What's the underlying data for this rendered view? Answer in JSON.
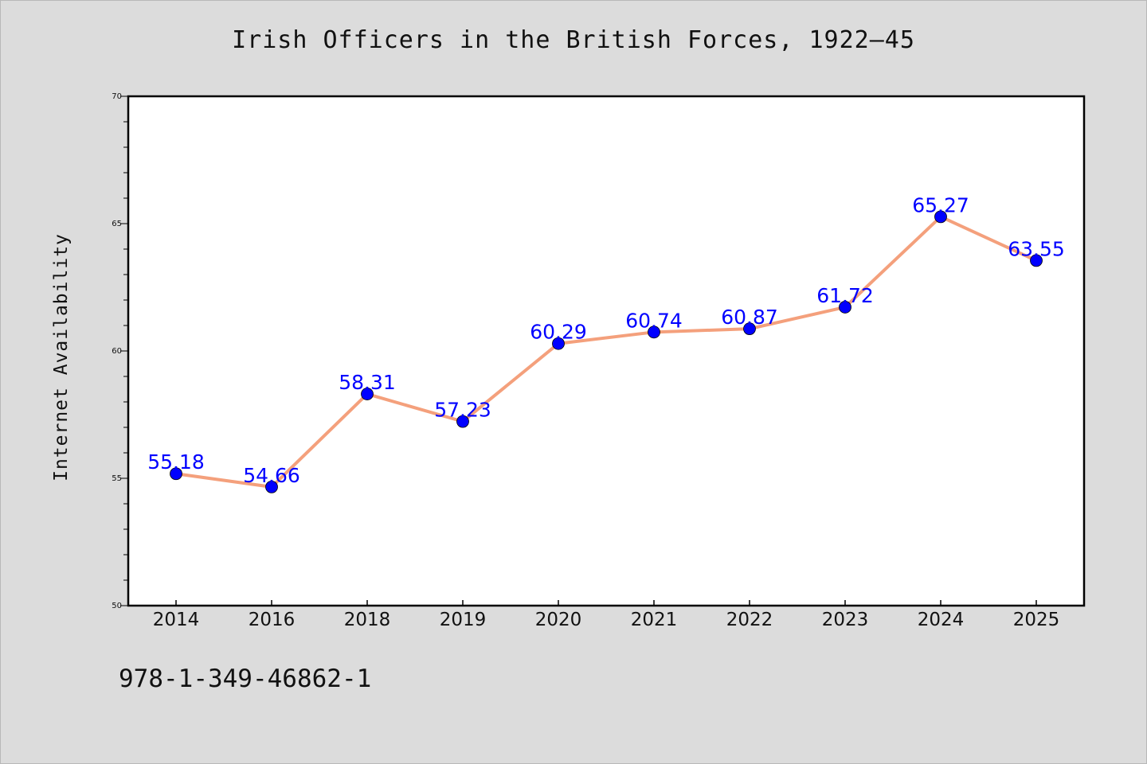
{
  "chart_data": {
    "type": "line",
    "title": "Irish Officers in the British Forces, 1922–45",
    "xlabel": "",
    "ylabel": "Internet Availability",
    "categories": [
      "2014",
      "2016",
      "2018",
      "2019",
      "2020",
      "2021",
      "2022",
      "2023",
      "2024",
      "2025"
    ],
    "series": [
      {
        "values": [
          55.18,
          54.66,
          58.31,
          57.23,
          60.29,
          60.74,
          60.87,
          61.72,
          65.27,
          63.55
        ],
        "labels": [
          "55.18",
          "54.66",
          "58.31",
          "57.23",
          "60.29",
          "60.74",
          "60.87",
          "61.72",
          "65.27",
          "63.55"
        ]
      }
    ],
    "ylim": [
      50,
      70
    ],
    "yticks_major": [
      "50",
      "55",
      "60",
      "65",
      "70"
    ],
    "grid": false,
    "legend": "none"
  },
  "footer": {
    "code": "978-1-349-46862-1"
  },
  "colors": {
    "background": "#dcdcdc",
    "plot_background": "#ffffff",
    "line": "#f4a07c",
    "marker": "#0000ff",
    "data_label": "#0000ff"
  }
}
